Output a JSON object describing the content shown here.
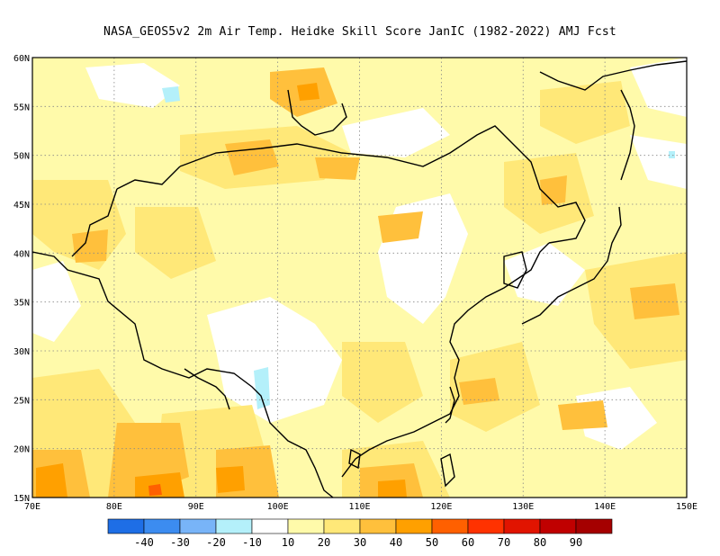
{
  "title": "NASA_GEOS5v2  2m Air Temp. Heidke Skill Score JanIC (1982-2022) AMJ Fcst",
  "map": {
    "lon_range": [
      70,
      150
    ],
    "lat_range": [
      15,
      60
    ],
    "lon_ticks": [
      "70E",
      "80E",
      "90E",
      "100E",
      "110E",
      "120E",
      "130E",
      "140E",
      "150E"
    ],
    "lat_ticks": [
      "15N",
      "20N",
      "25N",
      "30N",
      "35N",
      "40N",
      "45N",
      "50N",
      "55N",
      "60N"
    ],
    "grid": true,
    "coastline_color": "#000000"
  },
  "colorbar": {
    "labels": [
      "-40",
      "-30",
      "-20",
      "-10",
      "10",
      "20",
      "30",
      "40",
      "50",
      "60",
      "70",
      "80",
      "90"
    ],
    "colors": [
      "#1e6ee6",
      "#3c8cf0",
      "#78b4f8",
      "#b4f0fa",
      "#ffffff",
      "#fffaaa",
      "#ffe878",
      "#ffc03c",
      "#ffa000",
      "#ff6000",
      "#ff3200",
      "#e11400",
      "#c00000",
      "#a50000"
    ]
  }
}
